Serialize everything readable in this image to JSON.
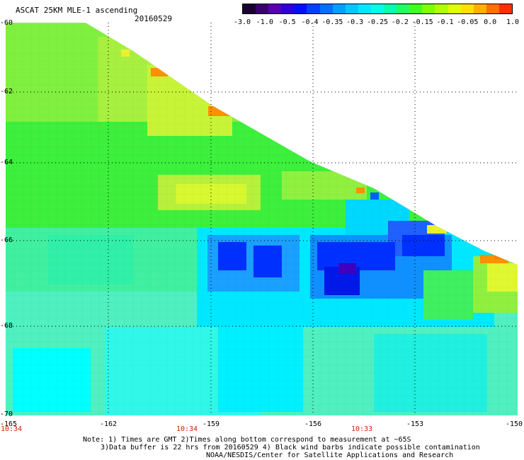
{
  "header": {
    "title": "ASCAT 25KM MLE-1 ascending",
    "date": "20160529"
  },
  "colorbar": {
    "labels": [
      "-3.0",
      "-1.0",
      "-0.5",
      "-0.4",
      "-0.35",
      "-0.3",
      "-0.25",
      "-0.2",
      "-0.15",
      "-0.1",
      "-0.05",
      "0.0",
      "1.0"
    ],
    "colors": [
      "#2a0050",
      "#5a00b0",
      "#2800e6",
      "#0050ff",
      "#00a0ff",
      "#00e6ff",
      "#00ffb0",
      "#30ff30",
      "#80ff00",
      "#e0ff00",
      "#ffd000",
      "#ff8000",
      "#ff2000"
    ]
  },
  "axes": {
    "x_labels": [
      "-165",
      "-162",
      "-159",
      "-156",
      "-153",
      "-150"
    ],
    "y_labels": [
      "-60",
      "-62",
      "-64",
      "-66",
      "-68",
      "-70"
    ],
    "time_labels": [
      "10:34",
      "10:34",
      "10:33"
    ]
  },
  "notes": {
    "line1": "Note: 1) Times are GMT 2)Times along bottom correspond to measurement at ~65S",
    "line2": "3)Data buffer is 22 hrs from 20160529 4) Black wind barbs indicate possible contamination",
    "line3": "NOAA/NESDIS/Center for Satellite Applications and Research"
  },
  "legend_colors": {
    "grid": "#000000",
    "time_text": "#cc2200"
  }
}
